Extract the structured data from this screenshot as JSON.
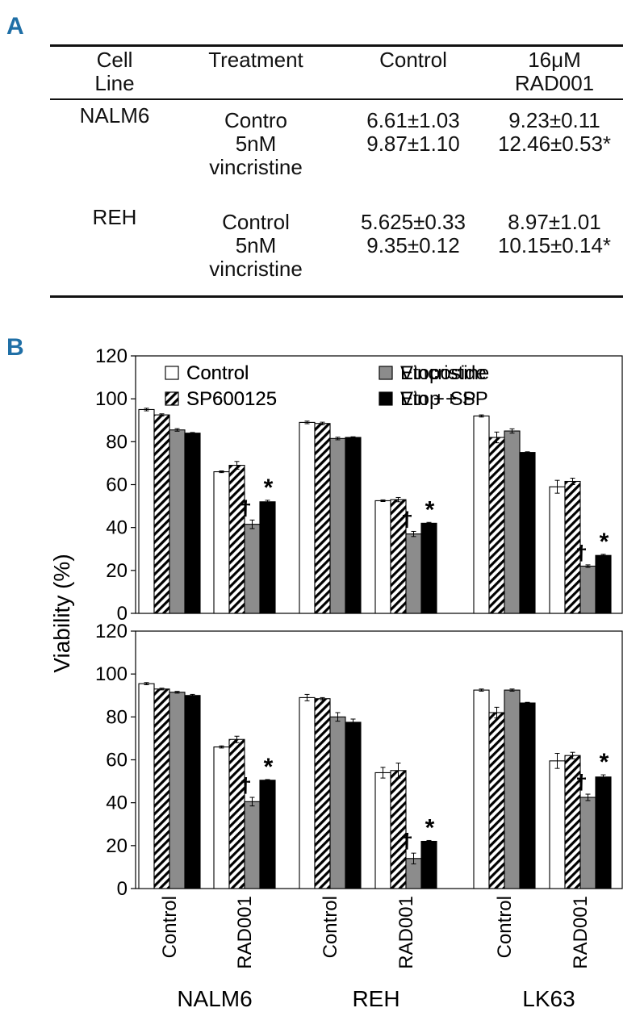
{
  "panel_a": {
    "letter": "A",
    "columns": [
      [
        "Cell",
        "Line"
      ],
      [
        "Treatment"
      ],
      [
        "Control"
      ],
      [
        "16μM",
        "RAD001"
      ]
    ],
    "rows": [
      {
        "cell_line": "NALM6",
        "treatment": [
          "Contro",
          "5nM",
          "vincristine"
        ],
        "control": [
          "6.61±1.03",
          "9.87±1.10"
        ],
        "rad001": [
          "9.23±0.11",
          "12.46±0.53*"
        ]
      },
      {
        "cell_line": "REH",
        "treatment": [
          "Control",
          "5nM",
          "vincristine"
        ],
        "control": [
          "5.625±0.33",
          "9.35±0.12"
        ],
        "rad001": [
          "8.97±1.01",
          "10.15±0.14*"
        ]
      }
    ]
  },
  "panel_b": {
    "letter": "B",
    "ylabel": "Viability (%)",
    "groups": [
      "NALM6",
      "REH",
      "LK63"
    ],
    "subgroups": [
      "Control",
      "RAD001"
    ],
    "colors": {
      "white": "#ffffff",
      "gray": "#8c8c8c",
      "black": "#000000",
      "hatch": "#000000"
    }
  },
  "chart_data": [
    {
      "type": "bar",
      "title": "",
      "ylabel": "Viability (%)",
      "ylim": [
        0,
        120
      ],
      "yticks": [
        0,
        20,
        40,
        60,
        80,
        100,
        120
      ],
      "categories": [
        "NALM6 Control",
        "NALM6 RAD001",
        "REH Control",
        "REH RAD001",
        "LK63 Control",
        "LK63 RAD001"
      ],
      "legend": [
        "Control",
        "SP600125",
        "Vincristine",
        "Vin + SP"
      ],
      "series": [
        {
          "name": "Control",
          "style": "white",
          "values": [
            95,
            66,
            89,
            52.5,
            92,
            59
          ],
          "errors": [
            0.6,
            0.4,
            0.6,
            0.4,
            0.5,
            3.0
          ]
        },
        {
          "name": "SP600125",
          "style": "hatch",
          "values": [
            92.5,
            69,
            88.5,
            53,
            82,
            61.5
          ],
          "errors": [
            0.5,
            1.8,
            0.6,
            1.0,
            2.5,
            1.5
          ]
        },
        {
          "name": "Vincristine",
          "style": "gray",
          "values": [
            85.5,
            41.5,
            81.5,
            37,
            85,
            22
          ],
          "errors": [
            0.6,
            2.0,
            0.6,
            1.2,
            1.0,
            0.6
          ]
        },
        {
          "name": "Vin + SP",
          "style": "black",
          "values": [
            84,
            52,
            82,
            42,
            75,
            27
          ],
          "errors": [
            0.3,
            0.7,
            0.3,
            0.4,
            0.3,
            0.5
          ]
        }
      ],
      "annotations": [
        {
          "category": "NALM6 RAD001",
          "series": "Vincristine",
          "text": "†"
        },
        {
          "category": "NALM6 RAD001",
          "series": "Vin + SP",
          "text": "*"
        },
        {
          "category": "REH RAD001",
          "series": "Vincristine",
          "text": "†"
        },
        {
          "category": "REH RAD001",
          "series": "Vin + SP",
          "text": "*"
        },
        {
          "category": "LK63 RAD001",
          "series": "Vincristine",
          "text": "†"
        },
        {
          "category": "LK63 RAD001",
          "series": "Vin + SP",
          "text": "*"
        }
      ]
    },
    {
      "type": "bar",
      "title": "",
      "ylabel": "Viability (%)",
      "ylim": [
        0,
        120
      ],
      "yticks": [
        0,
        20,
        40,
        60,
        80,
        100,
        120
      ],
      "categories": [
        "NALM6 Control",
        "NALM6 RAD001",
        "REH Control",
        "REH RAD001",
        "LK63 Control",
        "LK63 RAD001"
      ],
      "legend": [
        "Control",
        "SP600125",
        "Etoposide",
        "Etop + SP"
      ],
      "series": [
        {
          "name": "Control",
          "style": "white",
          "values": [
            95.5,
            66,
            89,
            54,
            92.5,
            59.5
          ],
          "errors": [
            0.5,
            0.5,
            1.5,
            2.5,
            0.5,
            3.5
          ]
        },
        {
          "name": "SP600125",
          "style": "hatch",
          "values": [
            93,
            69.5,
            88.5,
            55,
            82,
            62
          ],
          "errors": [
            0.4,
            1.5,
            0.5,
            3.5,
            2.5,
            1.5
          ]
        },
        {
          "name": "Etoposide",
          "style": "gray",
          "values": [
            91.5,
            40.5,
            80,
            14,
            92.5,
            42.5
          ],
          "errors": [
            0.4,
            2.0,
            2.0,
            2.5,
            0.5,
            1.5
          ]
        },
        {
          "name": "Etop + SP",
          "style": "black",
          "values": [
            90,
            50.5,
            77.5,
            22,
            86.5,
            52
          ],
          "errors": [
            0.5,
            0.3,
            1.5,
            0.4,
            0.3,
            1.0
          ]
        }
      ],
      "annotations": [
        {
          "category": "NALM6 RAD001",
          "series": "Etoposide",
          "text": "†"
        },
        {
          "category": "NALM6 RAD001",
          "series": "Etop + SP",
          "text": "*"
        },
        {
          "category": "REH RAD001",
          "series": "Etoposide",
          "text": "†"
        },
        {
          "category": "REH RAD001",
          "series": "Etop + SP",
          "text": "*"
        },
        {
          "category": "LK63 RAD001",
          "series": "Etoposide",
          "text": "†"
        },
        {
          "category": "LK63 RAD001",
          "series": "Etop + SP",
          "text": "*"
        }
      ]
    }
  ]
}
